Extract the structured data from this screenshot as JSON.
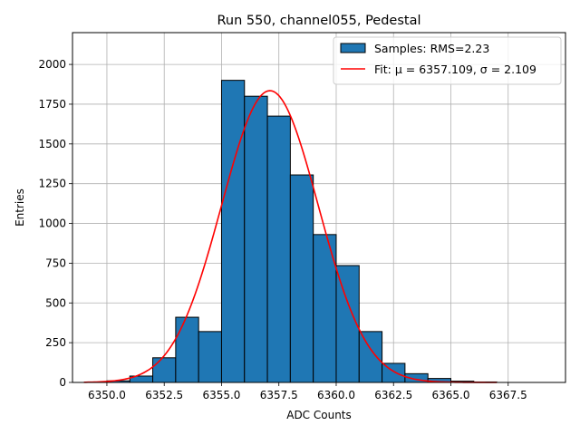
{
  "chart_data": {
    "type": "bar",
    "title": "Run 550, channel055, Pedestal",
    "xlabel": "ADC Counts",
    "ylabel": "Entries",
    "xlim": [
      6348.5,
      6370.0
    ],
    "ylim": [
      0,
      2200
    ],
    "grid": true,
    "legend_position": "top-right",
    "x_ticks": [
      6350.0,
      6352.5,
      6355.0,
      6357.5,
      6360.0,
      6362.5,
      6365.0,
      6367.5
    ],
    "x_tick_labels": [
      "6350.0",
      "6352.5",
      "6355.0",
      "6357.5",
      "6360.0",
      "6362.5",
      "6365.0",
      "6367.5"
    ],
    "y_ticks": [
      0,
      250,
      500,
      750,
      1000,
      1250,
      1500,
      1750,
      2000
    ],
    "y_tick_labels": [
      "0",
      "250",
      "500",
      "750",
      "1000",
      "1250",
      "1500",
      "1750",
      "2000"
    ],
    "histogram": {
      "name": "Samples: RMS=2.23",
      "color": "#1f77b4",
      "edge_color": "#000000",
      "bins": [
        {
          "x0": 6350,
          "x1": 6351,
          "count": 10
        },
        {
          "x0": 6351,
          "x1": 6352,
          "count": 40
        },
        {
          "x0": 6352,
          "x1": 6353,
          "count": 155
        },
        {
          "x0": 6353,
          "x1": 6354,
          "count": 410
        },
        {
          "x0": 6354,
          "x1": 6355,
          "count": 320
        },
        {
          "x0": 6355,
          "x1": 6356,
          "count": 1900
        },
        {
          "x0": 6356,
          "x1": 6357,
          "count": 1800
        },
        {
          "x0": 6357,
          "x1": 6358,
          "count": 1675
        },
        {
          "x0": 6358,
          "x1": 6359,
          "count": 1305
        },
        {
          "x0": 6359,
          "x1": 6360,
          "count": 930
        },
        {
          "x0": 6360,
          "x1": 6361,
          "count": 735
        },
        {
          "x0": 6361,
          "x1": 6362,
          "count": 320
        },
        {
          "x0": 6362,
          "x1": 6363,
          "count": 120
        },
        {
          "x0": 6363,
          "x1": 6364,
          "count": 55
        },
        {
          "x0": 6364,
          "x1": 6365,
          "count": 25
        },
        {
          "x0": 6365,
          "x1": 6366,
          "count": 8
        },
        {
          "x0": 6366,
          "x1": 6367,
          "count": 3
        }
      ]
    },
    "fit": {
      "name": "Fit: μ = 6357.109, σ = 2.109",
      "color": "#ff0000",
      "mu": 6357.109,
      "sigma": 2.109,
      "amplitude": 1835,
      "x_range": [
        6349.0,
        6367.0
      ]
    }
  }
}
